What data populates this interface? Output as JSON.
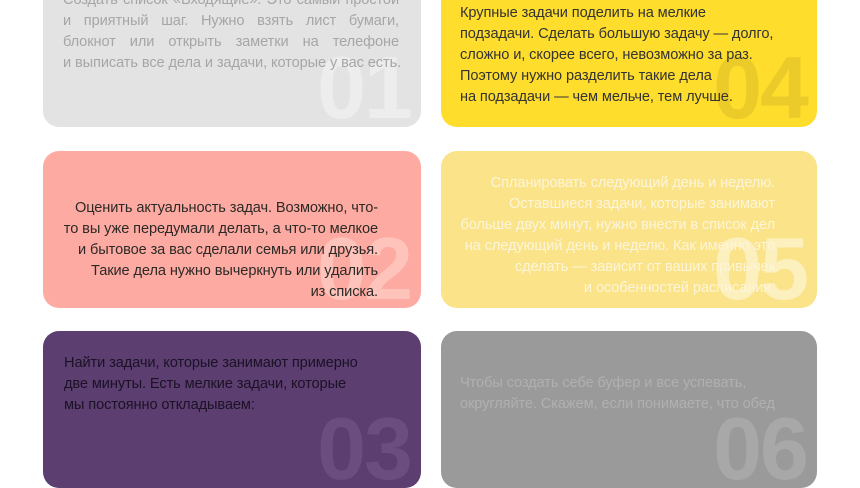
{
  "page": {
    "background": "#ffffff"
  },
  "cards": [
    {
      "id": "step-01",
      "number": "01",
      "align": "justify",
      "colors": {
        "background": "#e3e3e3",
        "text": "#a6a6a6",
        "number": "#ededed"
      },
      "lines": [
        "Создать список «Входящие». Это самый простой",
        "и приятный шаг. Нужно взять лист бумаги,",
        "блокнот или открыть заметки на телефоне",
        "и выписать все дела и задачи, которые у вас есть."
      ]
    },
    {
      "id": "step-02",
      "number": "02",
      "align": "right",
      "colors": {
        "background": "#fdaba2",
        "text": "#2d2926",
        "number": "#fec4bc"
      },
      "lines": [
        "Оценить актуальность задач. Возможно, что-",
        "то вы уже передумали делать, а что-то мелкое",
        "и бытовое за вас сделали семья или друзья.",
        "Такие дела нужно вычеркнуть или удалить",
        "из списка."
      ]
    },
    {
      "id": "step-03",
      "number": "03",
      "align": "left",
      "colors": {
        "background": "#5c3e70",
        "text": "#1b1226",
        "number": "#6b4d7f"
      },
      "lines": [
        "Найти задачи, которые занимают примерно",
        "две минуты. Есть мелкие задачи, которые",
        "мы постоянно откладываем:"
      ]
    },
    {
      "id": "step-04",
      "number": "04",
      "align": "left",
      "colors": {
        "background": "#ffdd2d",
        "text": "#333333",
        "number": "#ebcb29"
      },
      "lines": [
        "Крупные задачи поделить на мелкие",
        "подзадачи. Сделать большую задачу — долго,",
        "сложно и, скорее всего, невозможно за раз.",
        "Поэтому нужно разделить такие дела",
        "на подзадачи — чем мельче, тем лучше."
      ]
    },
    {
      "id": "step-05",
      "number": "05",
      "align": "right",
      "colors": {
        "background": "#fbe38a",
        "text": "#fdf5d8",
        "number": "#fdf0bf"
      },
      "lines": [
        "Спланировать следующий день и неделю.",
        "Оставшиеся задачи, которые занимают",
        "больше двух минут, нужно внести в список дел",
        "на следующий день и неделю. Как именно это",
        "сделать — зависит от ваших привычек",
        "и особенностей расписания."
      ]
    },
    {
      "id": "step-06",
      "number": "06",
      "align": "left",
      "colors": {
        "background": "#9a9a9a",
        "text": "#b0b0b0",
        "number": "#a8a8a8"
      },
      "lines": [
        "Чтобы создать себе буфер и все успевать,",
        "округляйте. Скажем, если понимаете, что обед"
      ]
    }
  ]
}
